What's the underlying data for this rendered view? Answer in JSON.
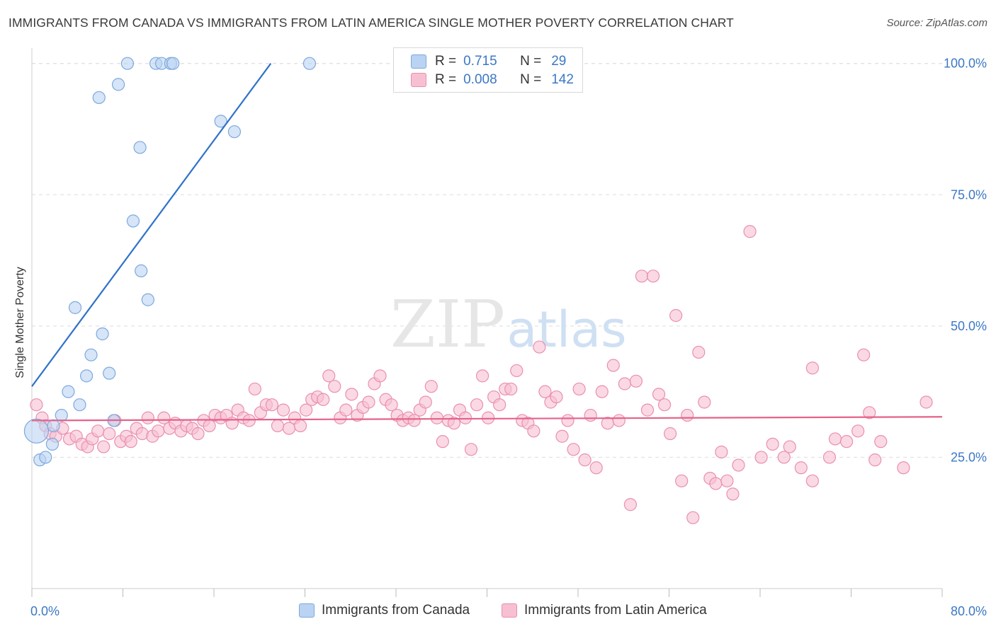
{
  "header": {
    "title": "IMMIGRANTS FROM CANADA VS IMMIGRANTS FROM LATIN AMERICA SINGLE MOTHER POVERTY CORRELATION CHART",
    "source": "Source: ZipAtlas.com"
  },
  "watermark": {
    "zip": "ZIP",
    "atlas": "atlas"
  },
  "legend": {
    "rows": [
      {
        "r_label": "R =",
        "r_value": "0.715",
        "n_label": "N =",
        "n_value": "29"
      },
      {
        "r_label": "R =",
        "r_value": "0.008",
        "n_label": "N =",
        "n_value": "142"
      }
    ]
  },
  "colors": {
    "canada_fill": "#bad3f2",
    "canada_stroke": "#7ea8de",
    "canada_line": "#2f72c8",
    "latam_fill": "#f7c0d2",
    "latam_stroke": "#ea8fae",
    "latam_line": "#e5628a",
    "axis_label": "#3b78c4",
    "grid": "#dddddd"
  },
  "chart_data": {
    "type": "scatter",
    "title": "IMMIGRANTS FROM CANADA VS IMMIGRANTS FROM LATIN AMERICA SINGLE MOTHER POVERTY CORRELATION CHART",
    "xlabel": "",
    "ylabel": "Single Mother Poverty",
    "xlim": [
      0,
      80
    ],
    "ylim": [
      0,
      104
    ],
    "x_tick_labels": [
      "0.0%",
      "80.0%"
    ],
    "y_ticks": [
      25,
      50,
      75,
      100
    ],
    "y_tick_labels": [
      "25.0%",
      "50.0%",
      "75.0%",
      "100.0%"
    ],
    "grid": true,
    "legend_position": "top-center",
    "series": [
      {
        "name": "Immigrants from Canada",
        "r": 0.715,
        "n": 29,
        "trend": {
          "x": [
            0.0,
            21.0
          ],
          "y": [
            38.5,
            100.0
          ]
        },
        "points": [
          [
            0.4,
            30.0
          ],
          [
            0.7,
            24.5
          ],
          [
            1.2,
            25.0
          ],
          [
            1.9,
            31.0
          ],
          [
            1.8,
            27.5
          ],
          [
            2.6,
            33.0
          ],
          [
            3.2,
            37.5
          ],
          [
            3.8,
            53.5
          ],
          [
            4.2,
            35.0
          ],
          [
            5.2,
            44.5
          ],
          [
            4.8,
            40.5
          ],
          [
            6.2,
            48.5
          ],
          [
            6.8,
            41.0
          ],
          [
            7.2,
            32.0
          ],
          [
            5.9,
            93.5
          ],
          [
            7.6,
            96.0
          ],
          [
            8.4,
            100.0
          ],
          [
            9.5,
            84.0
          ],
          [
            8.9,
            70.0
          ],
          [
            9.6,
            60.5
          ],
          [
            10.2,
            55.0
          ],
          [
            10.9,
            100.0
          ],
          [
            11.4,
            100.0
          ],
          [
            12.2,
            100.0
          ],
          [
            12.4,
            100.0
          ],
          [
            16.6,
            89.0
          ],
          [
            17.8,
            87.0
          ],
          [
            24.4,
            100.0
          ],
          [
            33.4,
            100.0
          ]
        ]
      },
      {
        "name": "Immigrants from Latin America",
        "r": 0.008,
        "n": 142,
        "trend": {
          "x": [
            0.0,
            80.0
          ],
          "y": [
            32.0,
            32.7
          ]
        },
        "points": [
          [
            0.4,
            35.0
          ],
          [
            0.9,
            32.5
          ],
          [
            1.2,
            31.0
          ],
          [
            1.6,
            29.5
          ],
          [
            2.1,
            29.0
          ],
          [
            2.7,
            30.5
          ],
          [
            3.3,
            28.5
          ],
          [
            3.9,
            29.0
          ],
          [
            4.4,
            27.5
          ],
          [
            4.9,
            27.0
          ],
          [
            5.3,
            28.5
          ],
          [
            5.8,
            30.0
          ],
          [
            6.3,
            27.0
          ],
          [
            6.8,
            29.5
          ],
          [
            7.3,
            32.0
          ],
          [
            7.8,
            28.0
          ],
          [
            8.3,
            29.0
          ],
          [
            8.7,
            28.0
          ],
          [
            9.2,
            30.5
          ],
          [
            9.7,
            29.5
          ],
          [
            10.2,
            32.5
          ],
          [
            10.6,
            29.0
          ],
          [
            11.1,
            30.0
          ],
          [
            11.6,
            32.5
          ],
          [
            12.1,
            30.5
          ],
          [
            12.6,
            31.5
          ],
          [
            13.1,
            30.0
          ],
          [
            13.6,
            31.0
          ],
          [
            14.1,
            30.5
          ],
          [
            14.6,
            29.5
          ],
          [
            15.1,
            32.0
          ],
          [
            15.6,
            31.0
          ],
          [
            16.1,
            33.0
          ],
          [
            16.6,
            32.5
          ],
          [
            17.1,
            33.0
          ],
          [
            17.6,
            31.5
          ],
          [
            18.1,
            34.0
          ],
          [
            18.6,
            32.5
          ],
          [
            19.1,
            32.0
          ],
          [
            19.6,
            38.0
          ],
          [
            20.1,
            33.5
          ],
          [
            20.6,
            35.0
          ],
          [
            21.1,
            35.0
          ],
          [
            21.6,
            31.0
          ],
          [
            22.1,
            34.0
          ],
          [
            22.6,
            30.5
          ],
          [
            23.1,
            32.5
          ],
          [
            23.6,
            31.0
          ],
          [
            24.1,
            34.0
          ],
          [
            24.6,
            36.0
          ],
          [
            25.1,
            36.5
          ],
          [
            25.6,
            36.0
          ],
          [
            26.1,
            40.5
          ],
          [
            26.6,
            38.5
          ],
          [
            27.1,
            32.5
          ],
          [
            27.6,
            34.0
          ],
          [
            28.1,
            37.0
          ],
          [
            28.6,
            33.0
          ],
          [
            29.1,
            34.5
          ],
          [
            29.6,
            35.5
          ],
          [
            30.1,
            39.0
          ],
          [
            30.6,
            40.5
          ],
          [
            31.1,
            36.0
          ],
          [
            31.6,
            35.0
          ],
          [
            32.1,
            33.0
          ],
          [
            32.6,
            32.0
          ],
          [
            33.1,
            32.5
          ],
          [
            33.6,
            32.0
          ],
          [
            34.1,
            34.0
          ],
          [
            34.6,
            35.5
          ],
          [
            35.1,
            38.5
          ],
          [
            35.6,
            32.5
          ],
          [
            36.1,
            28.0
          ],
          [
            36.6,
            32.0
          ],
          [
            37.1,
            31.5
          ],
          [
            37.6,
            34.0
          ],
          [
            38.1,
            32.5
          ],
          [
            38.6,
            26.5
          ],
          [
            39.1,
            35.0
          ],
          [
            39.6,
            40.5
          ],
          [
            40.1,
            32.5
          ],
          [
            40.6,
            36.5
          ],
          [
            41.1,
            35.0
          ],
          [
            41.6,
            38.0
          ],
          [
            42.1,
            38.0
          ],
          [
            42.6,
            41.5
          ],
          [
            43.1,
            32.0
          ],
          [
            43.6,
            31.5
          ],
          [
            44.1,
            30.0
          ],
          [
            44.6,
            46.0
          ],
          [
            45.1,
            37.5
          ],
          [
            45.6,
            35.5
          ],
          [
            46.1,
            36.5
          ],
          [
            46.6,
            29.0
          ],
          [
            47.1,
            32.0
          ],
          [
            47.6,
            26.5
          ],
          [
            48.1,
            38.0
          ],
          [
            48.6,
            24.5
          ],
          [
            49.1,
            33.0
          ],
          [
            49.6,
            23.0
          ],
          [
            50.1,
            37.5
          ],
          [
            50.6,
            31.5
          ],
          [
            51.1,
            42.5
          ],
          [
            51.6,
            32.0
          ],
          [
            52.1,
            39.0
          ],
          [
            52.6,
            16.0
          ],
          [
            53.1,
            39.5
          ],
          [
            53.6,
            59.5
          ],
          [
            54.1,
            34.0
          ],
          [
            54.6,
            59.5
          ],
          [
            55.1,
            37.0
          ],
          [
            55.6,
            35.0
          ],
          [
            56.1,
            29.5
          ],
          [
            56.6,
            52.0
          ],
          [
            57.1,
            20.5
          ],
          [
            57.6,
            33.0
          ],
          [
            58.1,
            13.5
          ],
          [
            58.6,
            45.0
          ],
          [
            59.1,
            35.5
          ],
          [
            59.6,
            21.0
          ],
          [
            60.1,
            20.0
          ],
          [
            60.6,
            26.0
          ],
          [
            61.1,
            20.5
          ],
          [
            61.6,
            18.0
          ],
          [
            62.1,
            23.5
          ],
          [
            63.1,
            68.0
          ],
          [
            64.1,
            25.0
          ],
          [
            65.1,
            27.5
          ],
          [
            66.1,
            25.0
          ],
          [
            66.6,
            27.0
          ],
          [
            67.6,
            23.0
          ],
          [
            68.6,
            42.0
          ],
          [
            68.6,
            20.5
          ],
          [
            70.1,
            25.0
          ],
          [
            70.6,
            28.5
          ],
          [
            71.6,
            28.0
          ],
          [
            72.6,
            30.0
          ],
          [
            73.1,
            44.5
          ],
          [
            73.6,
            33.5
          ],
          [
            74.1,
            24.5
          ],
          [
            74.6,
            28.0
          ],
          [
            76.6,
            23.0
          ],
          [
            78.6,
            35.5
          ]
        ]
      }
    ]
  },
  "bottom_legend": {
    "items": [
      "Immigrants from Canada",
      "Immigrants from Latin America"
    ]
  }
}
